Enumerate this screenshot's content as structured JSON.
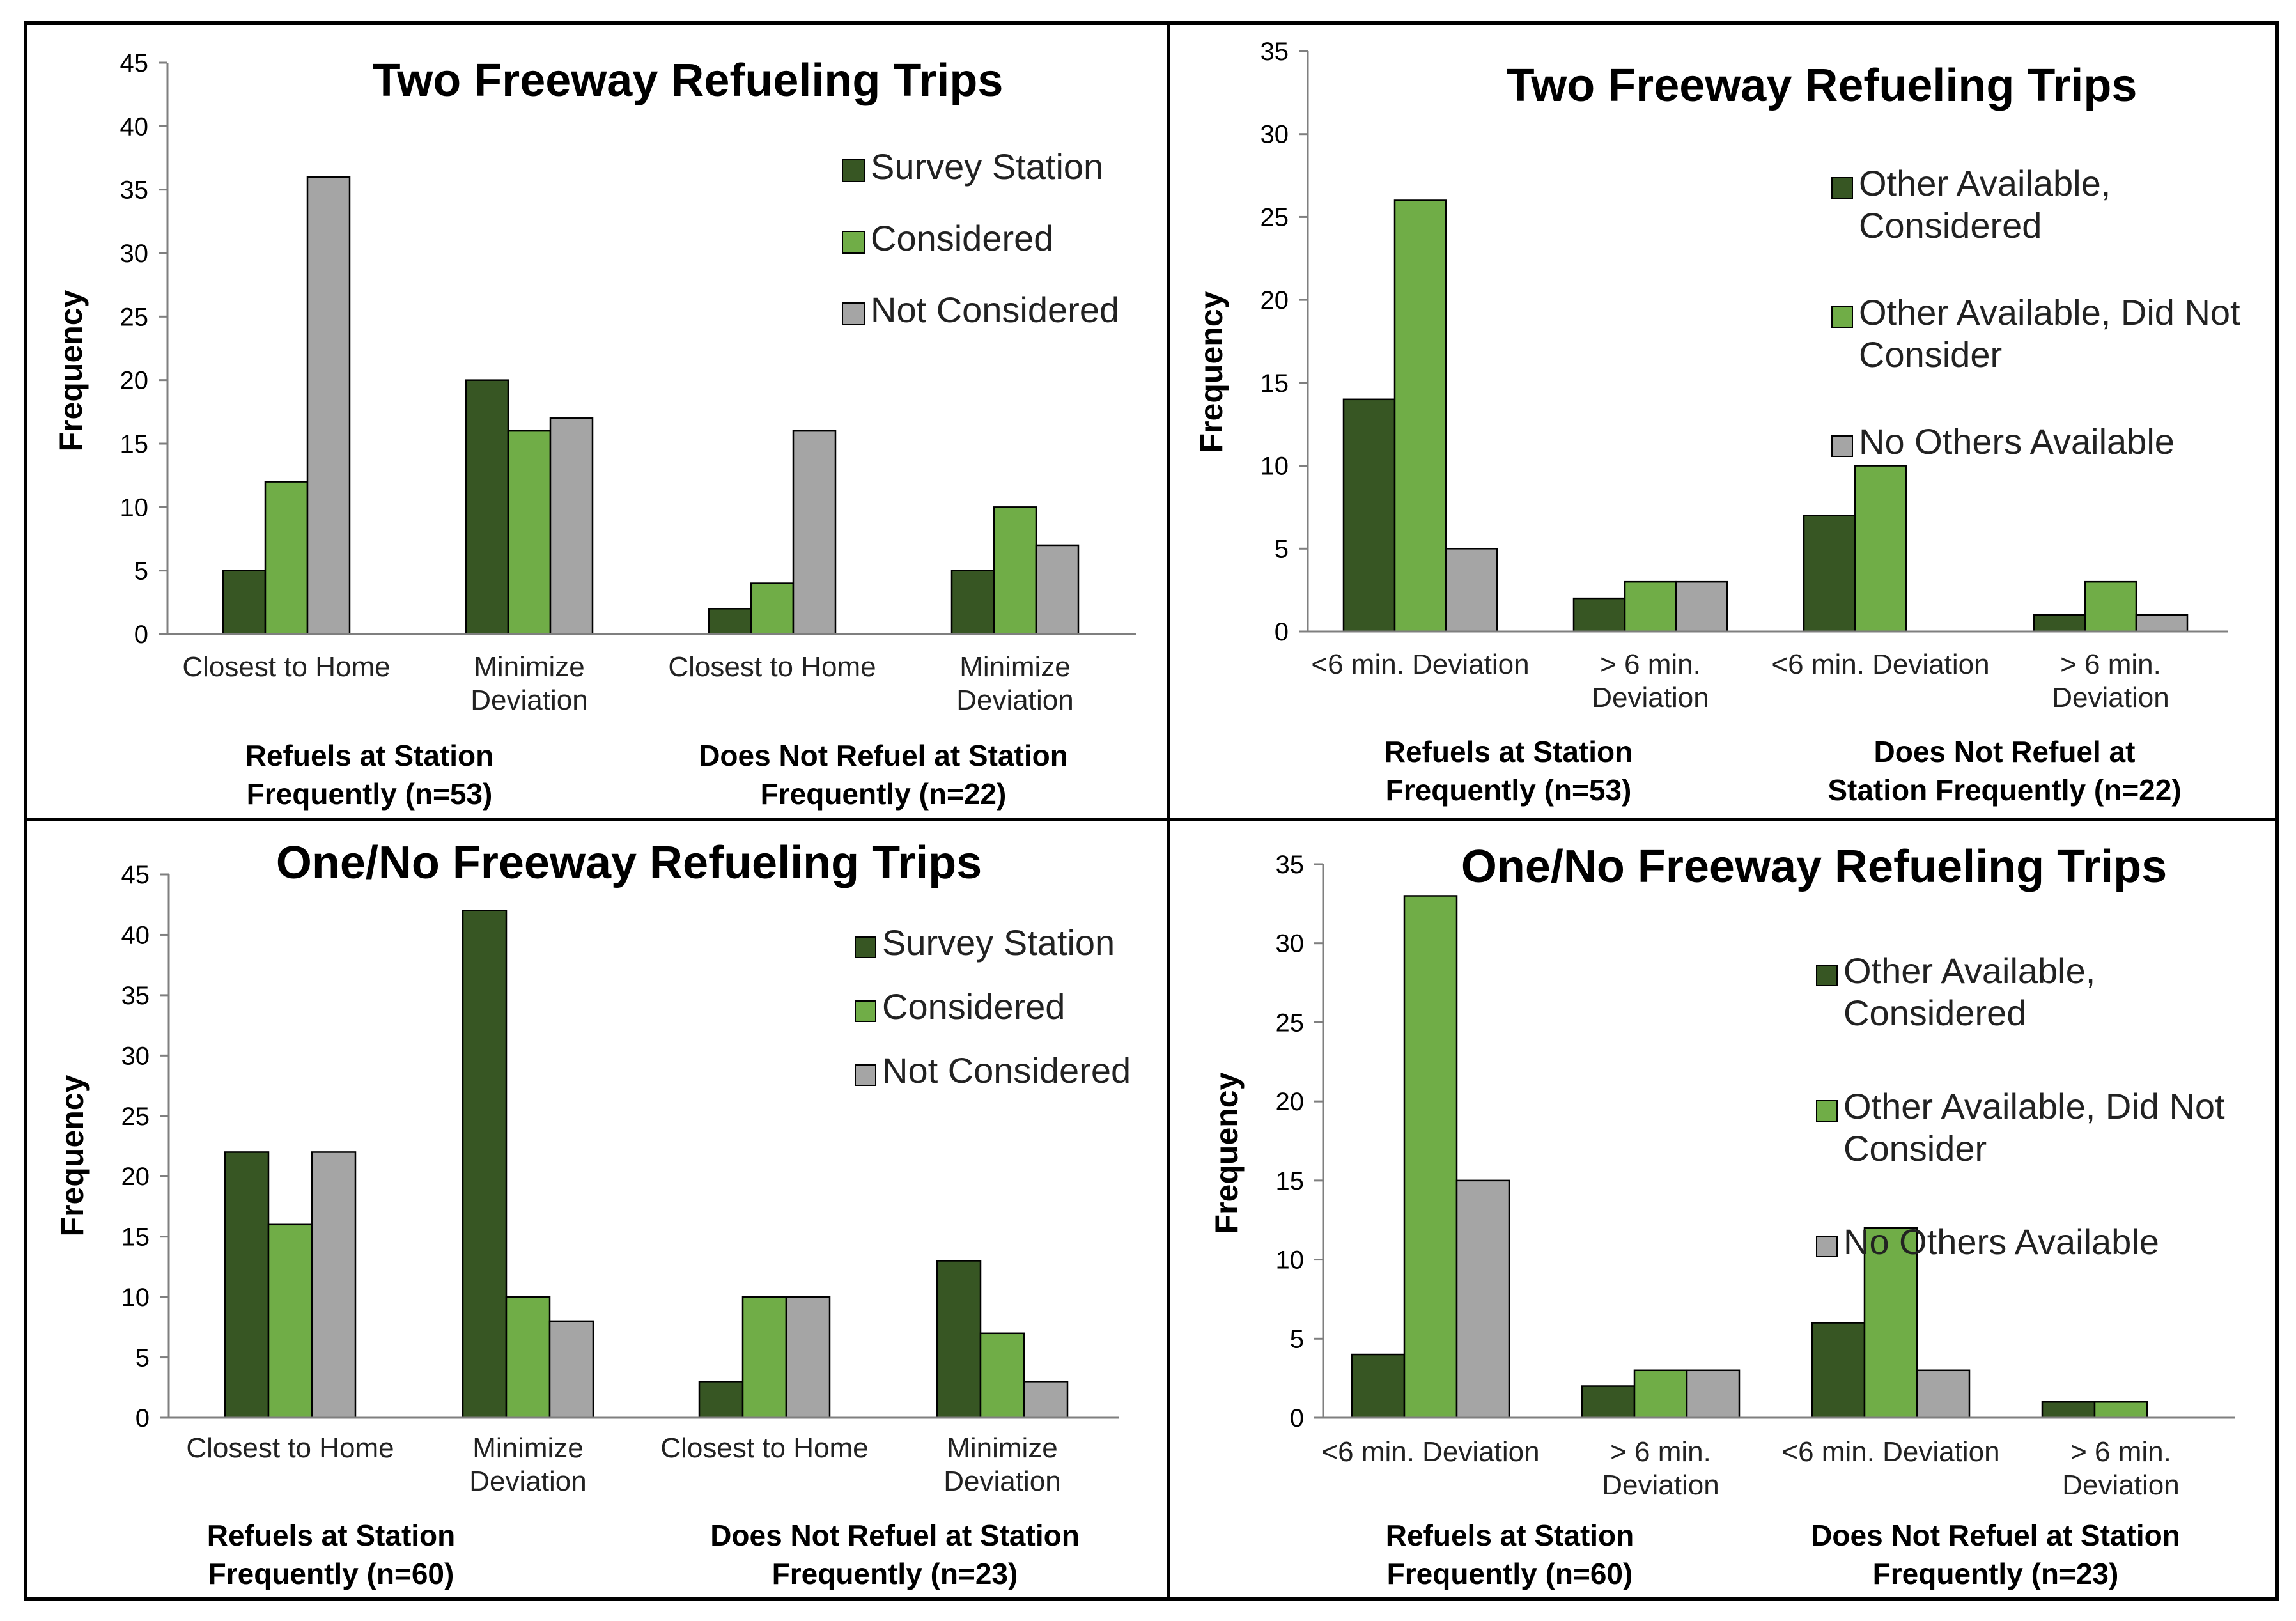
{
  "colors": {
    "dark_green": "#375623",
    "light_green": "#70ad47",
    "gray": "#a5a5a5"
  },
  "chart_data": [
    {
      "type": "bar",
      "title": "Two Freeway Refueling Trips",
      "ylabel": "Frequency",
      "ylim": [
        0,
        45
      ],
      "yticks": [
        0,
        5,
        10,
        15,
        20,
        25,
        30,
        35,
        40,
        45
      ],
      "categories": [
        [
          "Closest to Home"
        ],
        [
          "Minimize",
          "Deviation"
        ],
        [
          "Closest to Home"
        ],
        [
          "Minimize",
          "Deviation"
        ]
      ],
      "groups": [
        {
          "lines": [
            "Refuels at Station",
            "Frequently (n=53)"
          ]
        },
        {
          "lines": [
            "Does Not Refuel at Station",
            "Frequently  (n=22)"
          ]
        }
      ],
      "legend_position": "top-right",
      "series": [
        {
          "name": "Survey Station",
          "values": [
            5,
            20,
            2,
            5
          ]
        },
        {
          "name": "Considered",
          "values": [
            12,
            16,
            4,
            10
          ]
        },
        {
          "name": "Not Considered",
          "values": [
            36,
            17,
            16,
            7
          ]
        }
      ]
    },
    {
      "type": "bar",
      "title": "Two Freeway Refueling Trips",
      "ylabel": "Frequency",
      "ylim": [
        0,
        35
      ],
      "yticks": [
        0,
        5,
        10,
        15,
        20,
        25,
        30,
        35
      ],
      "categories": [
        [
          "<6 min. Deviation"
        ],
        [
          "> 6 min.",
          "Deviation"
        ],
        [
          "<6 min. Deviation"
        ],
        [
          "> 6 min.",
          "Deviation"
        ]
      ],
      "groups": [
        {
          "lines": [
            "Refuels at Station",
            "Frequently (n=53)"
          ]
        },
        {
          "lines": [
            "Does Not Refuel at",
            "Station Frequently  (n=22)"
          ]
        }
      ],
      "legend_position": "top-right",
      "series": [
        {
          "name": "Other Available, Considered",
          "legend_lines": [
            "Other Available,",
            "Considered"
          ],
          "values": [
            14,
            2,
            7,
            1
          ]
        },
        {
          "name": "Other Available, Did Not Consider",
          "legend_lines": [
            "Other Available, Did Not",
            "Consider"
          ],
          "values": [
            26,
            3,
            10,
            3
          ]
        },
        {
          "name": "No Others Available",
          "legend_lines": [
            "No Others Available"
          ],
          "values": [
            5,
            3,
            0,
            1
          ]
        }
      ]
    },
    {
      "type": "bar",
      "title": "One/No Freeway Refueling Trips",
      "ylabel": "Frequency",
      "ylim": [
        0,
        45
      ],
      "yticks": [
        0,
        5,
        10,
        15,
        20,
        25,
        30,
        35,
        40,
        45
      ],
      "categories": [
        [
          "Closest to Home"
        ],
        [
          "Minimize",
          "Deviation"
        ],
        [
          "Closest to Home"
        ],
        [
          "Minimize",
          "Deviation"
        ]
      ],
      "groups": [
        {
          "lines": [
            "Refuels at Station",
            "Frequently (n=60)"
          ]
        },
        {
          "lines": [
            "Does Not Refuel at Station",
            "Frequently  (n=23)"
          ]
        }
      ],
      "legend_position": "top-right",
      "series": [
        {
          "name": "Survey Station",
          "values": [
            22,
            42,
            3,
            13
          ]
        },
        {
          "name": "Considered",
          "values": [
            16,
            10,
            10,
            7
          ]
        },
        {
          "name": "Not Considered",
          "values": [
            22,
            8,
            10,
            3
          ]
        }
      ]
    },
    {
      "type": "bar",
      "title": "One/No Freeway Refueling Trips",
      "ylabel": "Frequency",
      "ylim": [
        0,
        35
      ],
      "yticks": [
        0,
        5,
        10,
        15,
        20,
        25,
        30,
        35
      ],
      "categories": [
        [
          "<6 min. Deviation"
        ],
        [
          "> 6 min.",
          "Deviation"
        ],
        [
          "<6 min. Deviation"
        ],
        [
          "> 6 min.",
          "Deviation"
        ]
      ],
      "groups": [
        {
          "lines": [
            "Refuels at Station",
            "Frequently (n=60)"
          ]
        },
        {
          "lines": [
            "Does Not Refuel at Station",
            "Frequently  (n=23)"
          ]
        }
      ],
      "legend_position": "top-right",
      "series": [
        {
          "name": "Other Available, Considered",
          "legend_lines": [
            "Other Available,",
            "Considered"
          ],
          "values": [
            4,
            2,
            6,
            1
          ]
        },
        {
          "name": "Other Available, Did Not Consider",
          "legend_lines": [
            "Other Available, Did Not",
            "Consider"
          ],
          "values": [
            33,
            3,
            12,
            1
          ]
        },
        {
          "name": "No Others Available",
          "legend_lines": [
            "No Others Available"
          ],
          "values": [
            15,
            3,
            3,
            0
          ]
        }
      ]
    }
  ]
}
